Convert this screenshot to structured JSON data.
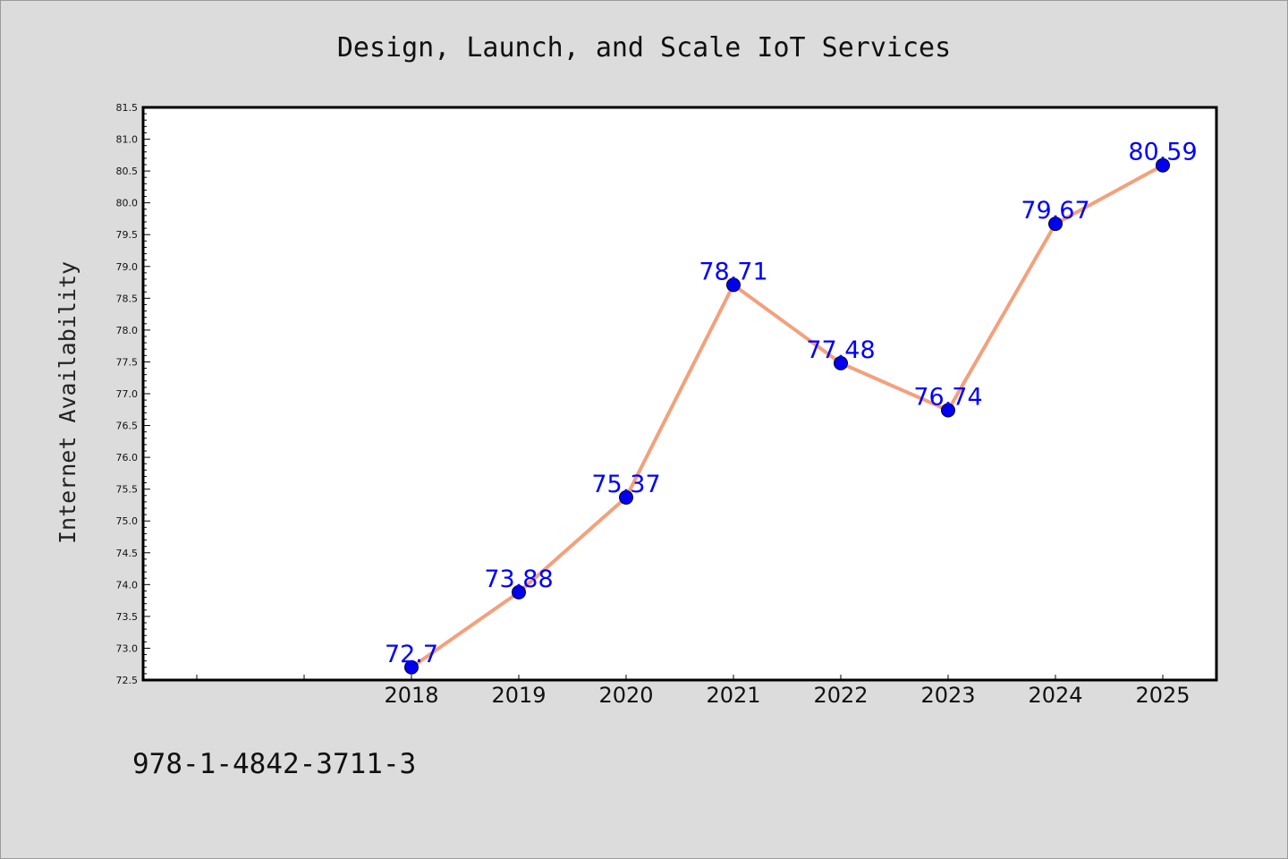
{
  "chart_data": {
    "type": "line",
    "title": "Design, Launch, and Scale IoT Services",
    "xlabel": "",
    "ylabel": "Internet Availability",
    "categories": [
      "2018",
      "2019",
      "2020",
      "2021",
      "2022",
      "2023",
      "2024",
      "2025"
    ],
    "series": [
      {
        "values": [
          72.7,
          73.88,
          75.37,
          78.71,
          77.48,
          76.74,
          79.67,
          80.59
        ],
        "labels": [
          "72.7",
          "73.88",
          "75.37",
          "78.71",
          "77.48",
          "76.74",
          "79.67",
          "80.59"
        ],
        "line_color": "#f4a07c",
        "marker_color": "#0000ee"
      }
    ],
    "ylim": [
      72.5,
      81.5
    ],
    "yticks": [
      "72.5",
      "73.0",
      "73.5",
      "74.0",
      "74.5",
      "75.0",
      "75.5",
      "76.0",
      "76.5",
      "77.0",
      "77.5",
      "78.0",
      "78.5",
      "79.0",
      "79.5",
      "80.0",
      "80.5",
      "81.0",
      "81.5"
    ],
    "x_slots": 10,
    "first_category_slot": 2,
    "grid": false,
    "legend": "none",
    "data_label_color": "#0000ff"
  },
  "footer": {
    "isbn": "978-1-4842-3711-3"
  }
}
